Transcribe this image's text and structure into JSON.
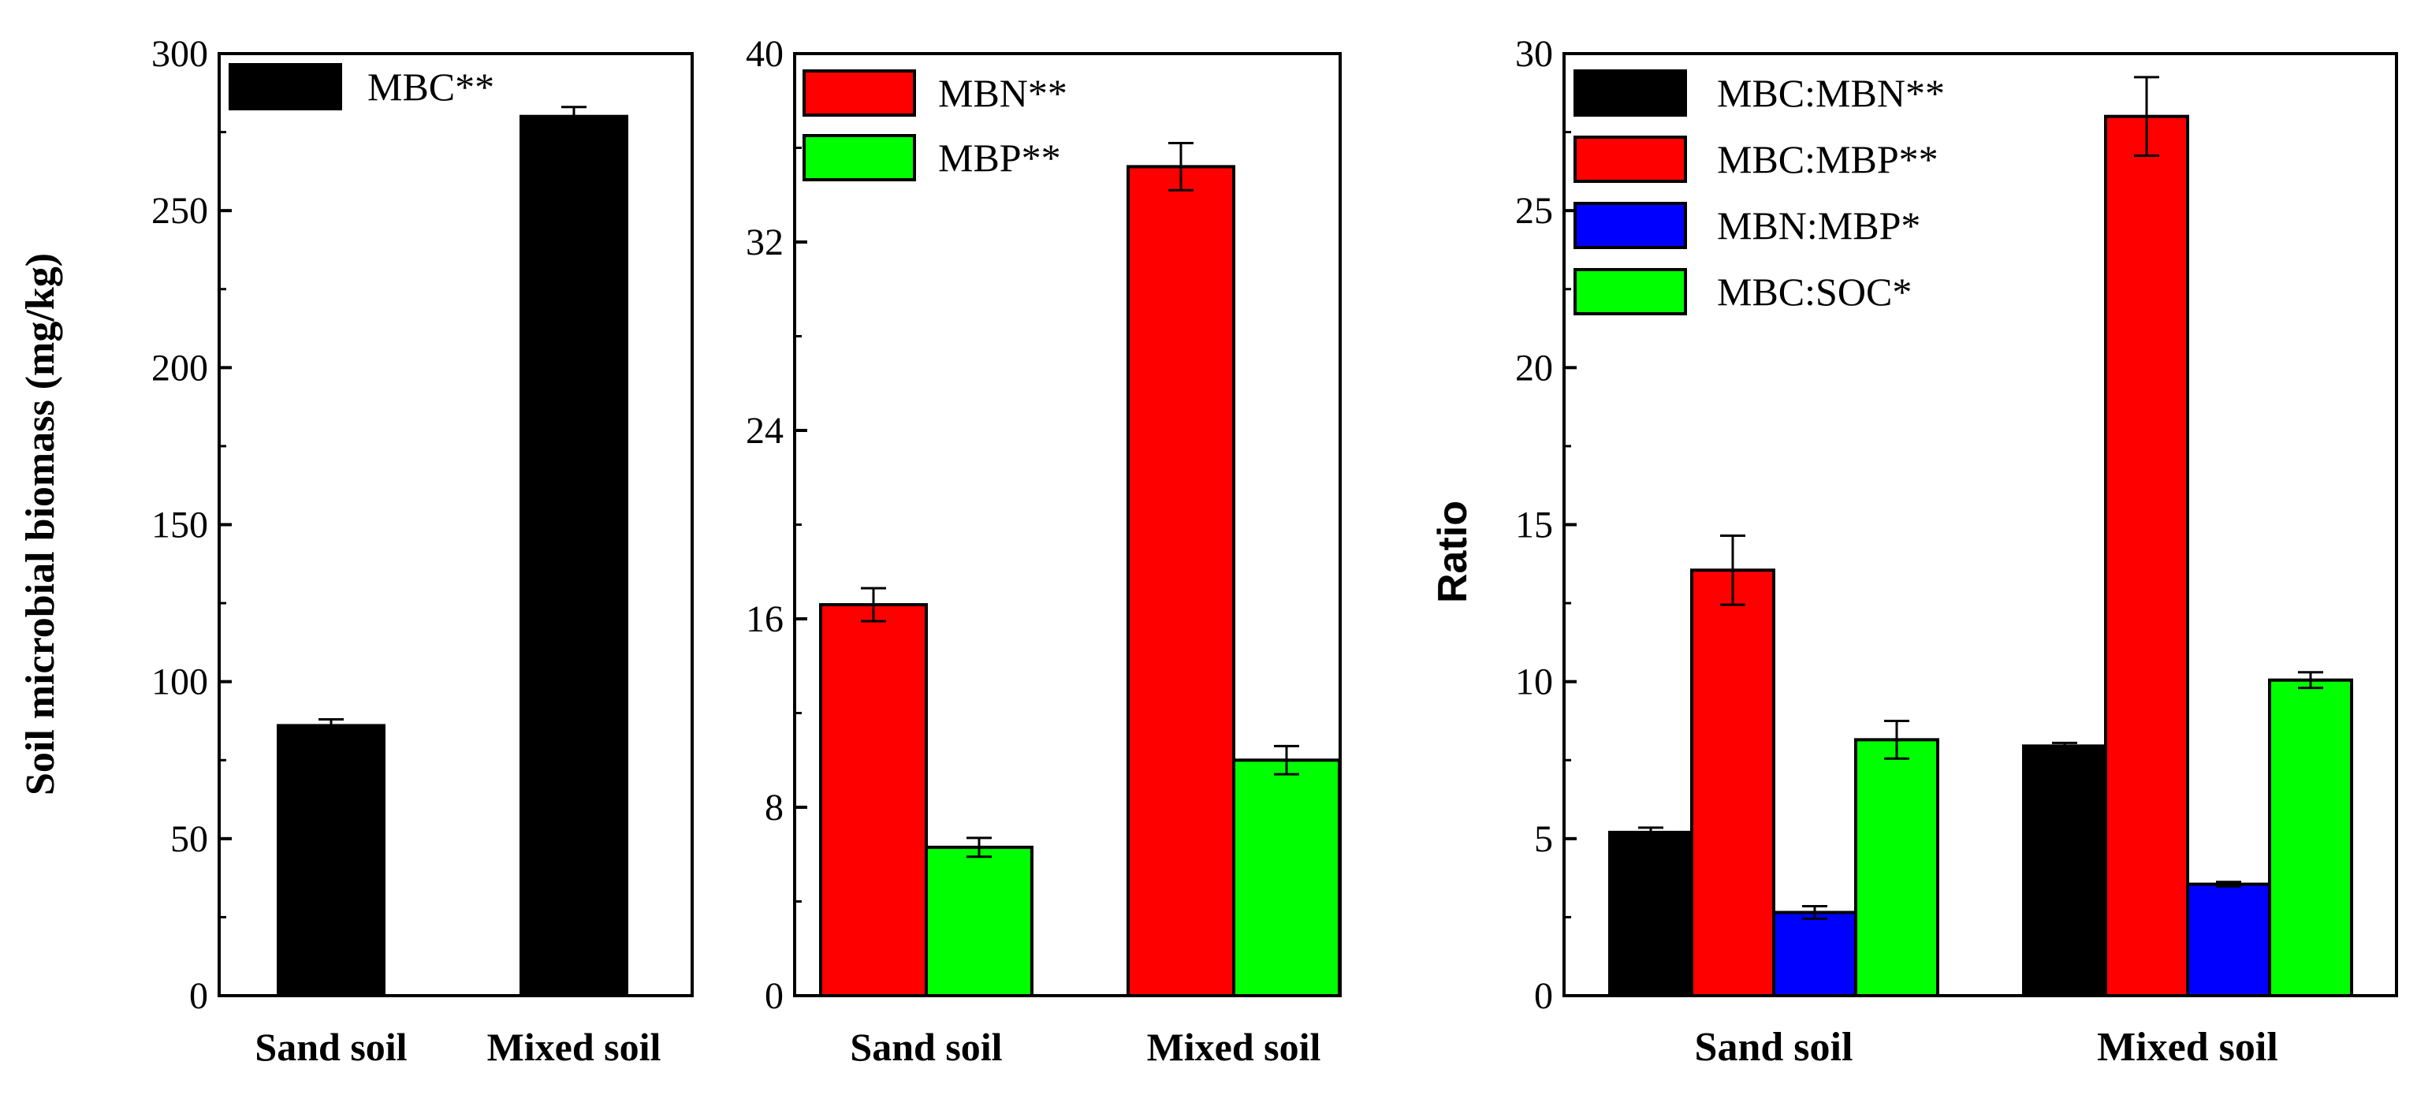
{
  "chart_data": [
    {
      "type": "bar",
      "id": "panel-mbc",
      "ylabel": "Soil microbial biomass (mg/kg)",
      "xlabel": "",
      "ylim": [
        0,
        300
      ],
      "yticks": [
        0,
        50,
        100,
        150,
        200,
        250,
        300
      ],
      "categories": [
        "Sand soil",
        "Mixed soil"
      ],
      "legend_position": "top-left",
      "series": [
        {
          "name": "MBC**",
          "color": "#000000",
          "values": [
            86,
            280
          ],
          "errors": [
            2,
            3
          ]
        }
      ]
    },
    {
      "type": "bar",
      "id": "panel-mbn-mbp",
      "ylabel": "",
      "xlabel": "",
      "ylim": [
        0,
        40
      ],
      "yticks": [
        0,
        8,
        16,
        24,
        32,
        40
      ],
      "categories": [
        "Sand soil",
        "Mixed soil"
      ],
      "legend_position": "top-left",
      "series": [
        {
          "name": "MBN**",
          "color": "#ff0000",
          "values": [
            16.6,
            35.2
          ],
          "errors": [
            0.7,
            1.0
          ]
        },
        {
          "name": "MBP**",
          "color": "#00ff00",
          "values": [
            6.3,
            10.0
          ],
          "errors": [
            0.4,
            0.6
          ]
        }
      ]
    },
    {
      "type": "bar",
      "id": "panel-ratio",
      "ylabel": "Ratio",
      "xlabel": "",
      "ylim": [
        0,
        30
      ],
      "yticks": [
        0,
        5,
        10,
        15,
        20,
        25,
        30
      ],
      "categories": [
        "Sand soil",
        "Mixed soil"
      ],
      "legend_position": "top-left",
      "series": [
        {
          "name": "MBC:MBN**",
          "color": "#000000",
          "values": [
            5.2,
            7.95
          ],
          "errors": [
            0.15,
            0.1
          ]
        },
        {
          "name": "MBC:MBP**",
          "color": "#ff0000",
          "values": [
            13.55,
            28.0
          ],
          "errors": [
            1.1,
            1.25
          ]
        },
        {
          "name": "MBN:MBP*",
          "color": "#0000ff",
          "values": [
            2.65,
            3.55
          ],
          "errors": [
            0.2,
            0.07
          ]
        },
        {
          "name": "MBC:SOC*",
          "color": "#00ff00",
          "values": [
            8.15,
            10.05
          ],
          "errors": [
            0.6,
            0.25
          ]
        }
      ]
    }
  ]
}
